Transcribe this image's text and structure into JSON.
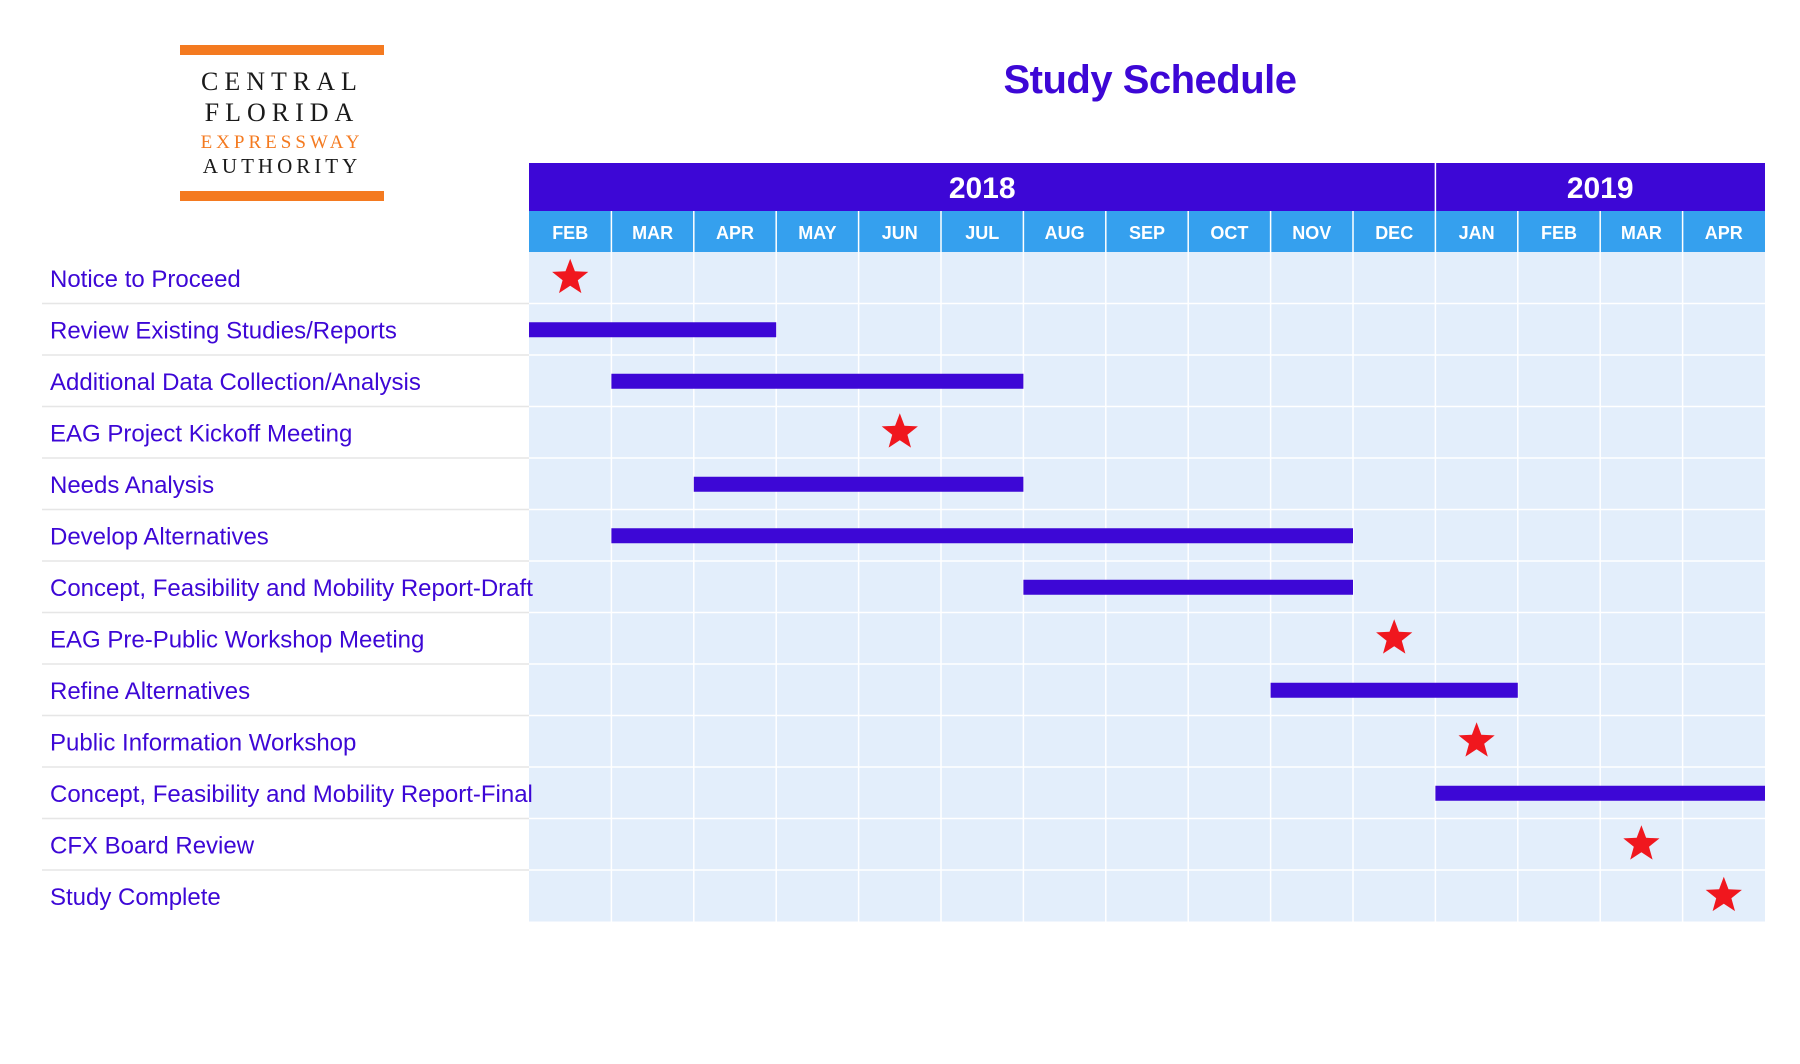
{
  "logo": {
    "line1": "CENTRAL",
    "line2": "FLORIDA",
    "line3": "EXPRESSWAY",
    "line4": "AUTHORITY"
  },
  "page_title": "Study Schedule",
  "colors": {
    "primary": "#3d07d6",
    "month_header": "#35a0ee",
    "grid_bg": "#e3eefb",
    "grid_line": "#ffffff",
    "milestone": "#f0171e",
    "orange": "#f47a20",
    "label_divider": "#e6e6e6"
  },
  "chart_data": {
    "type": "gantt",
    "title": "Study Schedule",
    "years": [
      {
        "label": "2018",
        "months": 11
      },
      {
        "label": "2019",
        "months": 4
      }
    ],
    "months": [
      "FEB",
      "MAR",
      "APR",
      "MAY",
      "JUN",
      "JUL",
      "AUG",
      "SEP",
      "OCT",
      "NOV",
      "DEC",
      "JAN",
      "FEB",
      "MAR",
      "APR"
    ],
    "tasks": [
      {
        "name": "Notice to Proceed",
        "type": "milestone",
        "month": "FEB 2018"
      },
      {
        "name": "Review Existing Studies/Reports",
        "type": "bar",
        "start": "FEB 2018",
        "end": "APR 2018"
      },
      {
        "name": "Additional Data Collection/Analysis",
        "type": "bar",
        "start": "MAR 2018",
        "end": "JUL 2018"
      },
      {
        "name": "EAG Project Kickoff Meeting",
        "type": "milestone",
        "month": "JUN 2018"
      },
      {
        "name": "Needs Analysis",
        "type": "bar",
        "start": "APR 2018",
        "end": "JUL 2018"
      },
      {
        "name": "Develop Alternatives",
        "type": "bar",
        "start": "MAR 2018",
        "end": "NOV 2018"
      },
      {
        "name": "Concept, Feasibility and Mobility Report-Draft",
        "type": "bar",
        "start": "AUG 2018",
        "end": "NOV 2018"
      },
      {
        "name": "EAG Pre-Public Workshop Meeting",
        "type": "milestone",
        "month": "DEC 2018"
      },
      {
        "name": "Refine Alternatives",
        "type": "bar",
        "start": "NOV 2018",
        "end": "JAN 2019"
      },
      {
        "name": "Public Information Workshop",
        "type": "milestone",
        "month": "JAN 2019"
      },
      {
        "name": "Concept, Feasibility and Mobility Report-Final",
        "type": "bar",
        "start": "JAN 2019",
        "end": "APR 2019"
      },
      {
        "name": "CFX Board Review",
        "type": "milestone",
        "month": "MAR 2019"
      },
      {
        "name": "Study Complete",
        "type": "milestone",
        "month": "APR 2019"
      }
    ]
  }
}
